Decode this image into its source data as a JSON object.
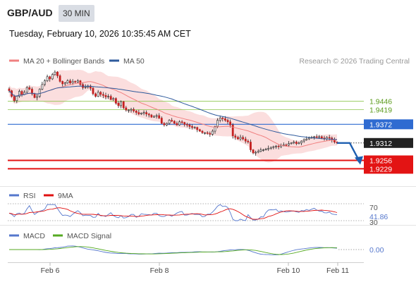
{
  "header": {
    "pair": "GBP/AUD",
    "timeframe": "30 MIN",
    "datetime": "Tuesday, February 10, 2026 10:35:45 AM CET"
  },
  "main_legend": [
    {
      "label": "MA 20 + Bollinger Bands",
      "color": "#f08080"
    },
    {
      "label": "MA 50",
      "color": "#2e5a9c"
    }
  ],
  "copyright": "Research © 2026 Trading Central",
  "chart_data": [
    {
      "type": "candlestick",
      "ylim": [
        1.9205,
        1.9545
      ],
      "x_ticks": [
        "Feb 6",
        "Feb 8",
        "Feb 10",
        "Feb 11"
      ],
      "levels": [
        {
          "value": 1.9446,
          "label": "1.9446",
          "kind": "resistance",
          "color": "#8bc34a"
        },
        {
          "value": 1.9419,
          "label": "1.9419",
          "kind": "resistance",
          "color": "#8bc34a"
        },
        {
          "value": 1.9372,
          "label": "1.9372",
          "kind": "pivot",
          "color": "#2f6bd1"
        },
        {
          "value": 1.9256,
          "label": "1.9256",
          "kind": "support",
          "color": "#e31414"
        },
        {
          "value": 1.9229,
          "label": "1.9229",
          "kind": "support",
          "color": "#e31414"
        }
      ],
      "last_price": {
        "value": 1.9312,
        "label": "1.9312"
      },
      "forecast_path": [
        1.9312,
        1.9312,
        1.9247
      ],
      "close": [
        1.948,
        1.9462,
        1.9448,
        1.9462,
        1.9478,
        1.9468,
        1.9475,
        1.949,
        1.9485,
        1.947,
        1.9458,
        1.9462,
        1.9485,
        1.95,
        1.9512,
        1.9525,
        1.9518,
        1.9532,
        1.954,
        1.9528,
        1.951,
        1.9502,
        1.9505,
        1.9512,
        1.9505,
        1.951,
        1.9508,
        1.9512,
        1.95,
        1.949,
        1.9492,
        1.9495,
        1.9488,
        1.947,
        1.9462,
        1.9475,
        1.9468,
        1.9465,
        1.946,
        1.9462,
        1.9452,
        1.9455,
        1.944,
        1.9432,
        1.9445,
        1.9425,
        1.9418,
        1.9418,
        1.942,
        1.9415,
        1.941,
        1.9405,
        1.9408,
        1.941,
        1.9405,
        1.9402,
        1.9395,
        1.9398,
        1.94,
        1.9392,
        1.9375,
        1.937,
        1.9375,
        1.9385,
        1.9382,
        1.9375,
        1.937,
        1.938,
        1.9378,
        1.9372,
        1.937,
        1.9365,
        1.9362,
        1.9362,
        1.9355,
        1.935,
        1.9345,
        1.9345,
        1.9343,
        1.934,
        1.935,
        1.9365,
        1.9385,
        1.9392,
        1.939,
        1.9385,
        1.938,
        1.937,
        1.9335,
        1.933,
        1.9325,
        1.933,
        1.9325,
        1.9318,
        1.9315,
        1.929,
        1.928,
        1.9282,
        1.9285,
        1.929,
        1.929,
        1.9292,
        1.9295,
        1.9298,
        1.93,
        1.9302,
        1.93,
        1.9304,
        1.9306,
        1.9305,
        1.931,
        1.9312,
        1.9315,
        1.931,
        1.9312,
        1.9318,
        1.9322,
        1.9325,
        1.9328,
        1.933,
        1.9332,
        1.933,
        1.9332,
        1.9328,
        1.9325,
        1.933,
        1.9328,
        1.9322,
        1.9315,
        1.9312
      ]
    },
    {
      "type": "line",
      "panel": "RSI",
      "legend": [
        {
          "label": "RSI",
          "color": "#5577cc"
        },
        {
          "label": "9MA",
          "color": "#e01010"
        }
      ],
      "levels": [
        {
          "value": 70,
          "label": "70"
        },
        {
          "value": 30,
          "label": "30"
        }
      ],
      "ylim": [
        25,
        75
      ],
      "last_value": {
        "value": 41.86,
        "label": "41.86"
      }
    },
    {
      "type": "line",
      "panel": "MACD",
      "legend": [
        {
          "label": "MACD",
          "color": "#5577cc"
        },
        {
          "label": "MACD Signal",
          "color": "#55aa22"
        }
      ],
      "zero_label": "0.00"
    }
  ]
}
